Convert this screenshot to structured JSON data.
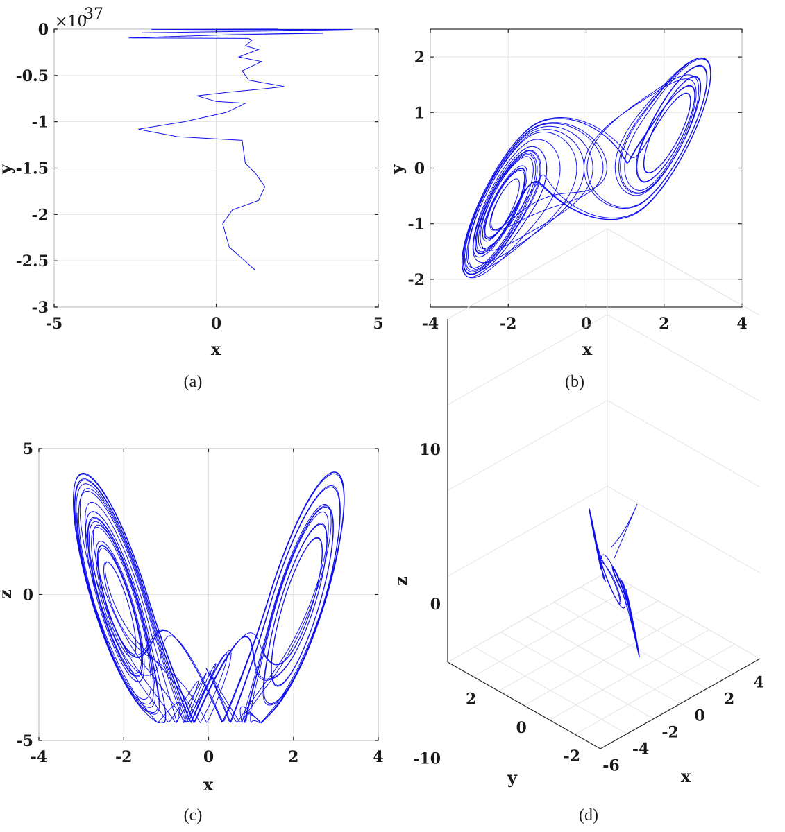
{
  "colors": {
    "series": "#1010ee",
    "grid": "#e3e3e3",
    "axes": "#262626"
  },
  "chart_data": [
    {
      "id": "a",
      "type": "line",
      "caption": "(a)",
      "xlabel": "x",
      "ylabel": "y",
      "y_scale_exponent": "37",
      "xlim": [
        -5,
        5
      ],
      "ylim": [
        -3,
        0
      ],
      "xticks": [
        "-5",
        "0",
        "5"
      ],
      "yticks": [
        "0",
        "-0.5",
        "-1",
        "-1.5",
        "-2",
        "-2.5",
        "-3"
      ],
      "grid": true,
      "series": [
        {
          "x": [
            1.2,
            0.4,
            0.2,
            0.5,
            1.3,
            1.5,
            1.2,
            0.9,
            0.8,
            -1.2,
            -2.4,
            -1.0,
            0.3,
            0.8,
            0.9,
            0.0,
            -0.6,
            0.4,
            1.3,
            2.1,
            1.0,
            0.8,
            1.4,
            0.7,
            1.3,
            0.9,
            1.1,
            1.0
          ],
          "y": [
            -2.6,
            -2.35,
            -2.1,
            -1.95,
            -1.85,
            -1.7,
            -1.55,
            -1.45,
            -1.2,
            -1.16,
            -1.08,
            -1.0,
            -0.9,
            -0.82,
            -0.8,
            -0.78,
            -0.72,
            -0.68,
            -0.65,
            -0.62,
            -0.55,
            -0.45,
            -0.35,
            -0.3,
            -0.22,
            -0.18,
            -0.12,
            -0.1
          ]
        },
        {
          "x": [
            1.0,
            -2.7,
            0.5,
            3.3,
            -2.3,
            1.6,
            4.2,
            -0.2,
            2.7,
            -2.0,
            1.9
          ],
          "y": [
            -0.1,
            -0.095,
            -0.06,
            -0.045,
            -0.04,
            -0.02,
            -0.004,
            -0.002,
            -0.01,
            -0.003,
            0.0
          ]
        }
      ]
    },
    {
      "id": "b",
      "type": "line",
      "caption": "(b)",
      "xlabel": "x",
      "ylabel": "y",
      "xlim": [
        -4,
        4
      ],
      "ylim": [
        -2.5,
        2.5
      ],
      "xticks": [
        "-4",
        "-2",
        "0",
        "2",
        "4"
      ],
      "yticks": [
        "2",
        "1",
        "0",
        "-1",
        "-2"
      ],
      "grid": true,
      "attractor": "double-scroll (x, y)"
    },
    {
      "id": "c",
      "type": "line",
      "caption": "(c)",
      "xlabel": "x",
      "ylabel": "z",
      "xlim": [
        -4,
        4
      ],
      "ylim": [
        -5,
        5
      ],
      "xticks": [
        "-4",
        "-2",
        "0",
        "2",
        "4"
      ],
      "yticks": [
        "5",
        "0",
        "-5"
      ],
      "grid": true,
      "attractor": "double-scroll (x, z)"
    },
    {
      "id": "d",
      "type": "line",
      "caption": "(d)",
      "xlabel": "x",
      "ylabel": "y",
      "zlabel": "z",
      "xticks": [
        "-6",
        "-4",
        "-2",
        "0",
        "2",
        "4"
      ],
      "yticks": [
        "2",
        "0",
        "-2"
      ],
      "zticks": [
        "10",
        "0",
        "-10"
      ],
      "grid": true,
      "attractor": "3D trajectory (x, y, z)"
    }
  ]
}
